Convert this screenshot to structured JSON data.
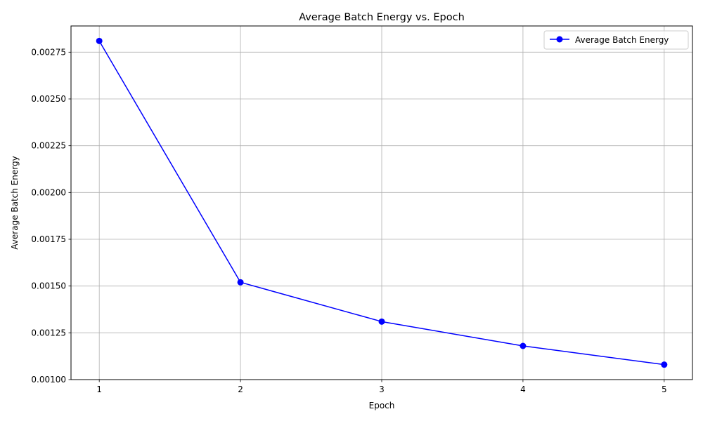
{
  "chart_data": {
    "type": "line",
    "title": "Average Batch Energy vs. Epoch",
    "xlabel": "Epoch",
    "ylabel": "Average Batch Energy",
    "x": [
      1,
      2,
      3,
      4,
      5
    ],
    "x_tick_labels": [
      "1",
      "2",
      "3",
      "4",
      "5"
    ],
    "xlim": [
      0.8,
      5.2
    ],
    "ylim": [
      0.001,
      0.00289
    ],
    "y_ticks": [
      0.001,
      0.00125,
      0.0015,
      0.00175,
      0.002,
      0.00225,
      0.0025,
      0.00275
    ],
    "y_tick_labels": [
      "0.00100",
      "0.00125",
      "0.00150",
      "0.00175",
      "0.00200",
      "0.00225",
      "0.00250",
      "0.00275"
    ],
    "grid": true,
    "legend_position": "top-right",
    "series": [
      {
        "name": "Average Batch Energy",
        "color": "#0000ff",
        "marker": "circle",
        "values": [
          0.00281,
          0.00152,
          0.00131,
          0.00118,
          0.00108
        ]
      }
    ]
  }
}
